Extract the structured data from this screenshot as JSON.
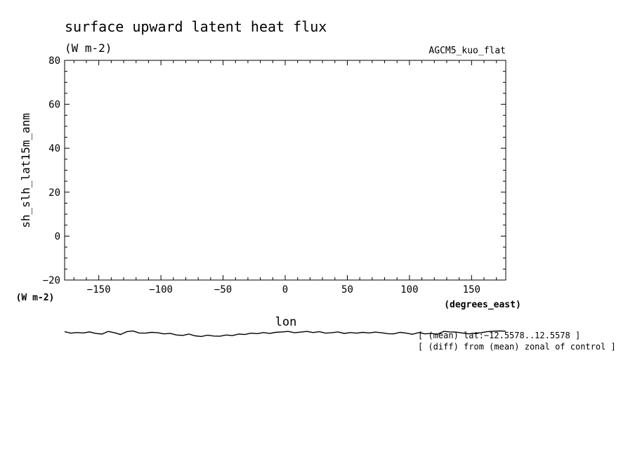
{
  "chart_data": {
    "type": "line",
    "title": "surface upward latent heat flux",
    "units": "(W m-2)",
    "model_label": "AGCM5_kuo_flat",
    "ylabel": "sh_slh_lat15m_anm",
    "ylabel_units": "(W m-2)",
    "xlabel": "lon",
    "xlabel_units": "(degrees_east)",
    "xlim": [
      -177.5,
      177.5
    ],
    "ylim": [
      -20,
      80
    ],
    "x_ticks": [
      -150,
      -100,
      -50,
      0,
      50,
      100,
      150
    ],
    "x_tick_labels": [
      "−150",
      "−100",
      "−50",
      "0",
      "50",
      "100",
      "150"
    ],
    "y_ticks": [
      -20,
      0,
      20,
      40,
      60,
      80
    ],
    "y_tick_labels": [
      "−20",
      "0",
      "20",
      "40",
      "60",
      "80"
    ],
    "notes": [
      "[ (mean) lat:−12.5578..12.5578 ]",
      "[ (diff) from (mean) zonal of control ]"
    ],
    "series": [
      {
        "x": [
          -177.5,
          -172.5,
          -167.5,
          -162.5,
          -157.5,
          -152.5,
          -147.5,
          -142.5,
          -137.5,
          -132.5,
          -127.5,
          -122.5,
          -117.5,
          -112.5,
          -107.5,
          -102.5,
          -97.5,
          -92.5,
          -87.5,
          -82.5,
          -77.5,
          -72.5,
          -67.5,
          -62.5,
          -57.5,
          -52.5,
          -47.5,
          -42.5,
          -37.5,
          -32.5,
          -27.5,
          -22.5,
          -17.5,
          -12.5,
          -7.5,
          -2.5,
          2.5,
          7.5,
          12.5,
          17.5,
          22.5,
          27.5,
          32.5,
          37.5,
          42.5,
          47.5,
          52.5,
          57.5,
          62.5,
          67.5,
          72.5,
          77.5,
          82.5,
          87.5,
          92.5,
          97.5,
          102.5,
          107.5,
          112.5,
          117.5,
          122.5,
          127.5,
          132.5,
          137.5,
          142.5,
          147.5,
          152.5,
          157.5,
          162.5,
          167.5,
          172.5,
          177.5
        ],
        "y": [
          -43.5,
          -44.2,
          -43.9,
          -44.1,
          -43.6,
          -44.3,
          -44.6,
          -43.4,
          -44.0,
          -44.8,
          -43.5,
          -43.2,
          -44.1,
          -44.2,
          -43.8,
          -44.0,
          -44.5,
          -44.3,
          -45.0,
          -45.2,
          -44.6,
          -45.4,
          -45.7,
          -45.1,
          -45.5,
          -45.6,
          -45.0,
          -45.3,
          -44.6,
          -44.8,
          -44.2,
          -44.4,
          -43.9,
          -44.3,
          -43.8,
          -43.6,
          -43.4,
          -44.0,
          -43.7,
          -43.4,
          -43.9,
          -43.5,
          -44.2,
          -44.0,
          -43.6,
          -44.3,
          -43.9,
          -44.2,
          -43.8,
          -44.1,
          -43.7,
          -44.0,
          -44.4,
          -44.5,
          -43.8,
          -44.2,
          -44.7,
          -43.9,
          -44.5,
          -44.3,
          -44.7,
          -43.4,
          -43.6,
          -43.7,
          -44.1,
          -44.5,
          -44.2,
          -44.0,
          -43.5,
          -43.3,
          -43.2,
          -43.3
        ]
      }
    ]
  }
}
